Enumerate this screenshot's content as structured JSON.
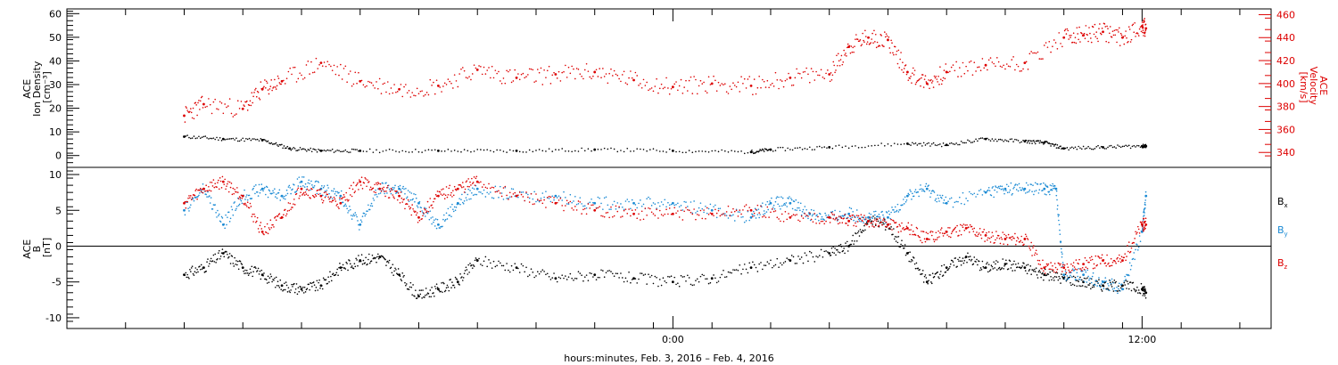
{
  "chart_data": [
    {
      "type": "scatter",
      "panel": "top",
      "ylabel": [
        "ACE",
        "Ion Density",
        "[cm⁻³]"
      ],
      "ylim": [
        -5,
        62
      ],
      "yticks": [
        0,
        10,
        20,
        30,
        40,
        50,
        60
      ],
      "ylabel_right": [
        "ACE",
        "Velocity",
        "[km/s]"
      ],
      "ylim_right": [
        327,
        465
      ],
      "yticks_right": [
        340,
        360,
        380,
        400,
        420,
        440,
        460
      ],
      "colors": {
        "density": "#000000",
        "velocity": "#dd0000"
      },
      "series": [
        {
          "name": "Ion Density",
          "axis": "left",
          "x": [
            -12.5,
            -11.5,
            -10.5,
            -9.8,
            -9,
            -8,
            -6,
            -4,
            -2,
            0,
            2,
            2.5,
            4,
            6,
            7,
            8,
            9,
            9.5,
            10,
            11,
            12,
            12.1
          ],
          "y": [
            8,
            7,
            6.5,
            3,
            2,
            2,
            2,
            2,
            2.5,
            2,
            1.5,
            2.5,
            3.5,
            5,
            4.5,
            7,
            6,
            5.5,
            3,
            3.5,
            4,
            4
          ]
        },
        {
          "name": "Velocity",
          "axis": "right",
          "x": [
            -12.5,
            -12,
            -11,
            -10.5,
            -10,
            -9,
            -8,
            -7,
            -6,
            -5,
            -4,
            -3,
            -2,
            -1,
            0,
            1,
            2,
            3,
            4,
            4.5,
            5,
            5.5,
            6,
            6.5,
            7,
            8,
            9,
            10,
            10.5,
            11,
            11.5,
            12,
            12.1
          ],
          "y": [
            372,
            382,
            378,
            395,
            402,
            418,
            402,
            395,
            398,
            412,
            405,
            408,
            410,
            403,
            397,
            400,
            398,
            405,
            408,
            432,
            440,
            438,
            410,
            400,
            410,
            416,
            418,
            440,
            442,
            445,
            440,
            450,
            448
          ]
        }
      ]
    },
    {
      "type": "scatter",
      "panel": "bottom",
      "ylabel": [
        "ACE",
        "B",
        "[nT]"
      ],
      "ylim": [
        -11.5,
        11
      ],
      "yticks": [
        -10,
        -5,
        0,
        5,
        10
      ],
      "zero_line": true,
      "colors": {
        "Bx": "#000000",
        "By": "#1a8ad4",
        "Bz": "#dd0000"
      },
      "series": [
        {
          "name": "Bx",
          "x": [
            -12.5,
            -12,
            -11.5,
            -11,
            -10.5,
            -10,
            -9.5,
            -9,
            -8.5,
            -8,
            -7.5,
            -7,
            -6.5,
            -6,
            -5.5,
            -5,
            -4,
            -3,
            -2,
            -1,
            0,
            1,
            2,
            3,
            4,
            4.5,
            5,
            5.5,
            6,
            6.5,
            7,
            7.5,
            8,
            8.5,
            9,
            9.5,
            10,
            10.5,
            11,
            11.5,
            12,
            12.1
          ],
          "y": [
            -4,
            -3,
            -1,
            -3,
            -4,
            -5.5,
            -6,
            -5.5,
            -3,
            -2,
            -1.5,
            -4,
            -7,
            -6,
            -5,
            -2,
            -3,
            -4.5,
            -4,
            -4.5,
            -5,
            -4.5,
            -3,
            -2,
            -1,
            0,
            3.5,
            3,
            -1,
            -5,
            -3,
            -1.5,
            -3,
            -2.5,
            -3,
            -4,
            -4.5,
            -5,
            -5.5,
            -5.5,
            -6,
            -6.5
          ]
        },
        {
          "name": "By",
          "x": [
            -12.5,
            -12,
            -11.5,
            -11,
            -10.5,
            -10,
            -9.5,
            -9,
            -8.5,
            -8,
            -7.5,
            -7,
            -6.5,
            -6,
            -5.5,
            -5,
            -4,
            -3,
            -2,
            -1,
            0,
            1,
            2,
            2.5,
            3,
            3.5,
            4,
            4.5,
            5,
            5.5,
            6,
            6.5,
            7,
            8,
            8.5,
            9,
            9.5,
            9.8,
            10,
            10.5,
            11,
            11.5,
            12,
            12.1
          ],
          "y": [
            5,
            8,
            3,
            7,
            8,
            7,
            9,
            8,
            7,
            3,
            8,
            8,
            6,
            3,
            6,
            8,
            7,
            7,
            6,
            6,
            6,
            5,
            4,
            6,
            6,
            4.5,
            4,
            4.5,
            4,
            4,
            7,
            8,
            6,
            7.5,
            8,
            8,
            8,
            8,
            -4,
            -4,
            -5,
            -6,
            2,
            7
          ]
        },
        {
          "name": "Bz",
          "x": [
            -12.5,
            -12,
            -11.5,
            -11,
            -10.5,
            -10,
            -9.5,
            -9,
            -8.5,
            -8,
            -7.5,
            -7,
            -6.5,
            -6,
            -5.5,
            -5,
            -4,
            -3,
            -2,
            -1,
            0,
            1,
            2,
            3,
            4,
            4.5,
            5,
            5.5,
            6,
            6.5,
            7,
            7.5,
            8,
            8.5,
            9,
            9.5,
            10,
            10.5,
            11,
            11.5,
            12,
            12.1
          ],
          "y": [
            6,
            8,
            9,
            7,
            2,
            4,
            8,
            7,
            6,
            9,
            8,
            7,
            4,
            7,
            8,
            9,
            7,
            6,
            5,
            4.5,
            4.5,
            4.5,
            5,
            4,
            4,
            3.5,
            3.5,
            3,
            2.5,
            1,
            2,
            2.5,
            1.5,
            1,
            1,
            -3,
            -3,
            -2.5,
            -2,
            -2,
            3,
            3
          ]
        }
      ]
    }
  ],
  "legend": [
    {
      "label": "B",
      "sub": "x",
      "color": "#000000"
    },
    {
      "label": "B",
      "sub": "y",
      "color": "#1a8ad4"
    },
    {
      "label": "B",
      "sub": "z",
      "color": "#dd0000"
    }
  ],
  "x_axis": {
    "xlim": [
      -15.5,
      15.3
    ],
    "major_ticks": [
      0,
      12
    ],
    "tick_labels": [
      "0:00",
      "12:00"
    ],
    "minor_step": 1.5,
    "xlabel": "hours:minutes, Feb.  3, 2016 – Feb.  4, 2016"
  }
}
